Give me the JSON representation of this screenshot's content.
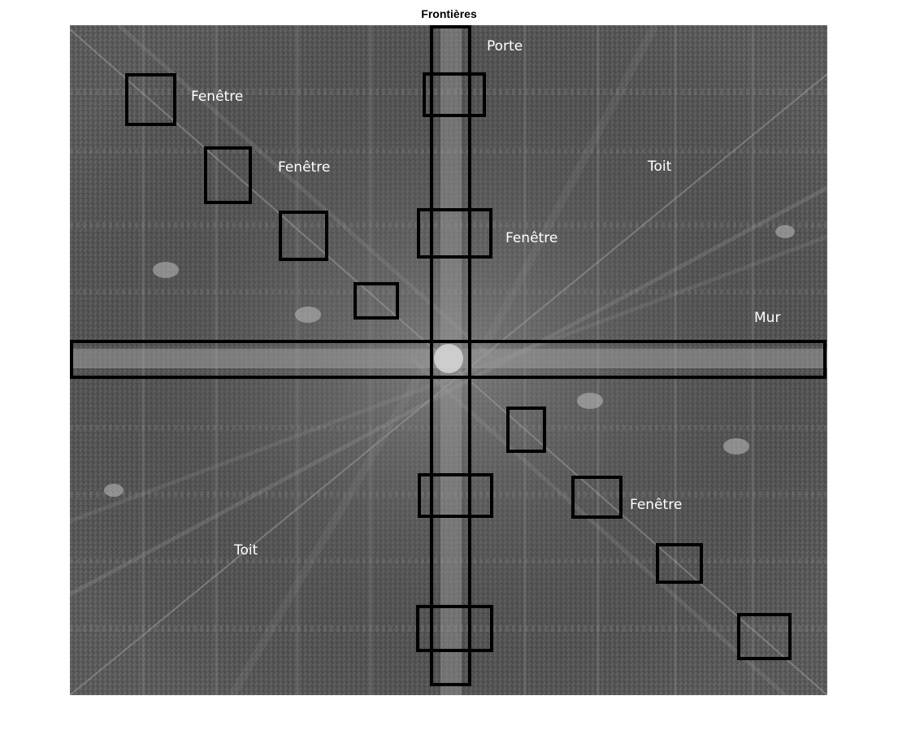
{
  "title": "Frontières",
  "labels": {
    "porte": "Porte",
    "fenetre_1": "Fenêtre",
    "fenetre_2": "Fenêtre",
    "fenetre_3": "Fenêtre",
    "fenetre_4": "Fenêtre",
    "toit_1": "Toit",
    "toit_2": "Toit",
    "mur": "Mur"
  },
  "colors": {
    "background": "#5f5f5f",
    "box_stroke": "#000000",
    "label_text": "#ffffff"
  }
}
